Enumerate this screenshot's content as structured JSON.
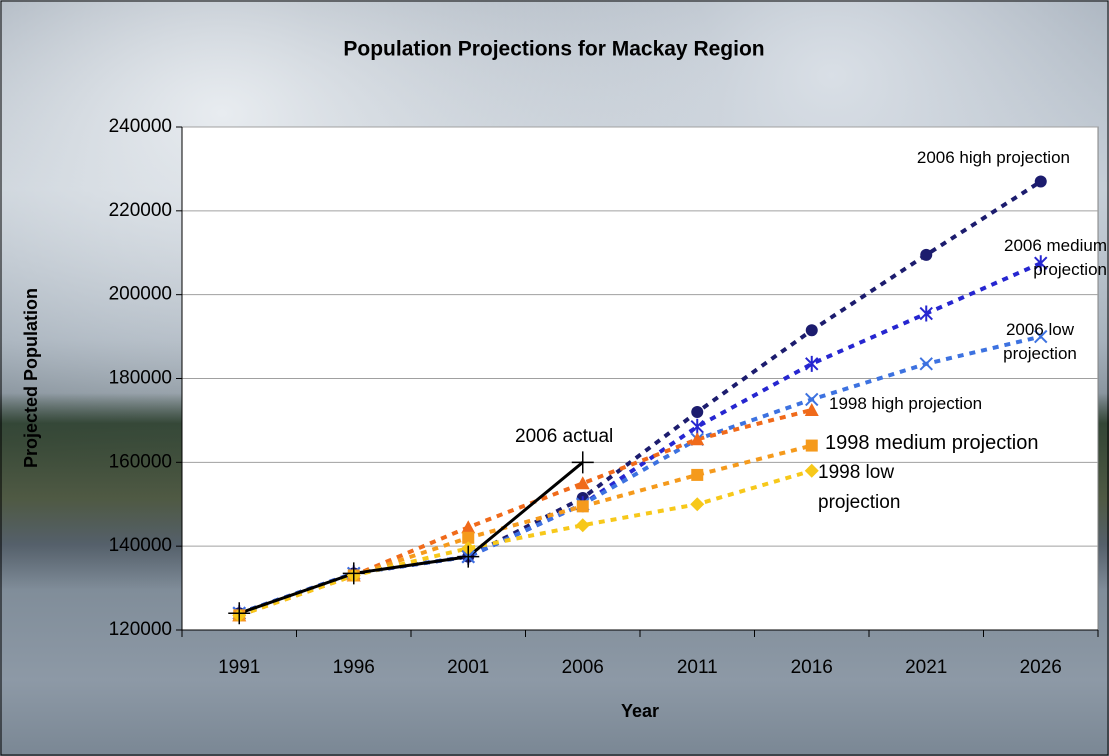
{
  "chart_data": {
    "type": "line",
    "title": "Population Projections for Mackay Region",
    "x_label": "Year",
    "y_label": "Projected Population",
    "categories": [
      "1991",
      "1996",
      "2001",
      "2006",
      "2011",
      "2016",
      "2021",
      "2026"
    ],
    "ylim": [
      120000,
      240000
    ],
    "yticks": [
      120000,
      140000,
      160000,
      180000,
      200000,
      220000,
      240000
    ],
    "grid": true,
    "series": [
      {
        "name": "2006 high projection",
        "color": "#1c1c6e",
        "marker": "circle",
        "line_style": "dashed",
        "values": [
          124000,
          133500,
          137500,
          151500,
          172000,
          191500,
          209500,
          227000
        ]
      },
      {
        "name": "2006 medium projection",
        "color": "#2626d0",
        "marker": "star",
        "line_style": "dashed",
        "values": [
          124000,
          133500,
          137500,
          150000,
          168500,
          183500,
          195500,
          207500
        ]
      },
      {
        "name": "2006 low projection",
        "color": "#3d72e0",
        "marker": "x",
        "line_style": "dashed",
        "values": [
          124000,
          133500,
          137500,
          150000,
          165500,
          175000,
          183500,
          190000
        ]
      },
      {
        "name": "1998 high projection",
        "color": "#f06a1a",
        "marker": "triangle",
        "line_style": "dashed",
        "values": [
          123500,
          133000,
          144500,
          155000,
          165500,
          172500,
          null,
          null
        ]
      },
      {
        "name": "1998 medium projection",
        "color": "#f59a1c",
        "marker": "square",
        "line_style": "dashed",
        "values": [
          123500,
          133000,
          142000,
          149500,
          157000,
          164000,
          null,
          null
        ]
      },
      {
        "name": "1998 low projection",
        "color": "#f7c81a",
        "marker": "diamond",
        "line_style": "dashed",
        "values": [
          123500,
          133000,
          139500,
          145000,
          150000,
          158000,
          null,
          null
        ]
      },
      {
        "name": "2006 actual",
        "color": "#000000",
        "marker": "plus",
        "line_style": "solid",
        "values": [
          124000,
          133500,
          137500,
          160000,
          null,
          null,
          null,
          null
        ]
      }
    ]
  }
}
